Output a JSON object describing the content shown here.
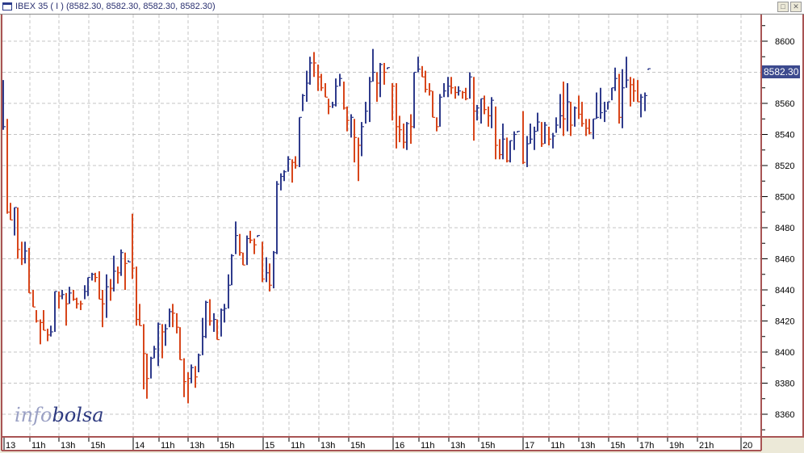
{
  "window": {
    "title": "IBEX 35 ( I ) (8582.30, 8582.30, 8582.30, 8582.30)",
    "restore_icon": "restore-icon",
    "close_icon": "close-icon"
  },
  "logo": {
    "part1": "info",
    "part2": "bolsa"
  },
  "price_badge": "8582.30",
  "colors": {
    "up": "#2f3b8c",
    "down": "#d8461b",
    "grid": "#c4c4c4",
    "frame": "#a85454",
    "badge": "#3c4a8e"
  },
  "chart_data": {
    "type": "ohlc-bar",
    "title": "IBEX 35 ( I )",
    "last_price": 8582.3,
    "ylim": [
      8350,
      8620
    ],
    "yticks": [
      8360,
      8380,
      8400,
      8420,
      8440,
      8460,
      8480,
      8500,
      8520,
      8540,
      8560,
      8580,
      8600
    ],
    "ytick_labels": [
      "8360",
      "8380",
      "8400",
      "8420",
      "8440",
      "8460",
      "8480",
      "8500",
      "8520",
      "8540",
      "8560",
      "",
      "8600"
    ],
    "xtick_labels": [
      "13",
      "11h",
      "13h",
      "15h",
      "14",
      "11h",
      "13h",
      "15h",
      "15",
      "11h",
      "13h",
      "15h",
      "16",
      "11h",
      "13h",
      "15h",
      "17",
      "11h",
      "13h",
      "15h",
      "17h",
      "19h",
      "21h",
      "20"
    ],
    "grid": true,
    "bar_interval": "15 min",
    "bar_format": "[high, low, close, direction(1 up / -1 down)]",
    "days": [
      {
        "day": "13",
        "bars": [
          [
            8575,
            8543,
            8545,
            1
          ],
          [
            8550,
            8489,
            8490,
            -1
          ],
          [
            8496,
            8485,
            8485,
            -1
          ],
          [
            8493,
            8475,
            8493,
            1
          ],
          [
            8493,
            8460,
            8466,
            -1
          ],
          [
            8471,
            8456,
            8460,
            -1
          ],
          [
            8471,
            8457,
            8465,
            1
          ],
          [
            8467,
            8438,
            8438,
            -1
          ],
          [
            8440,
            8429,
            8429,
            -1
          ],
          [
            8427,
            8419,
            8420,
            -1
          ],
          [
            8421,
            8405,
            8419,
            -1
          ],
          [
            8427,
            8414,
            8414,
            -1
          ],
          [
            8415,
            8407,
            8411,
            -1
          ],
          [
            8417,
            8410,
            8413,
            1
          ],
          [
            8439,
            8413,
            8439,
            1
          ],
          [
            8439,
            8428,
            8436,
            -1
          ],
          [
            8440,
            8434,
            8437,
            1
          ],
          [
            8438,
            8417,
            8431,
            -1
          ],
          [
            8442,
            8431,
            8438,
            1
          ],
          [
            8440,
            8433,
            8434,
            -1
          ],
          [
            8435,
            8428,
            8431,
            -1
          ],
          [
            8433,
            8427,
            8431,
            -1
          ],
          [
            8443,
            8434,
            8439,
            1
          ],
          [
            8448,
            8436,
            8448,
            1
          ],
          [
            8451,
            8446,
            8450,
            1
          ],
          [
            8451,
            8445,
            8448,
            -1
          ],
          [
            8452,
            8434,
            8434,
            -1
          ],
          [
            8440,
            8416,
            8431,
            -1
          ],
          [
            8450,
            8422,
            8442,
            1
          ],
          [
            8447,
            8433,
            8441,
            -1
          ],
          [
            8462,
            8439,
            8452,
            1
          ],
          [
            8455,
            8444,
            8451,
            -1
          ],
          [
            8466,
            8449,
            8464,
            1
          ],
          [
            8464,
            8440,
            8457,
            -1
          ],
          [
            8459,
            8458,
            8458,
            1
          ]
        ]
      },
      {
        "day": "14",
        "bars": [
          [
            8489,
            8447,
            8454,
            -1
          ],
          [
            8455,
            8417,
            8421,
            -1
          ],
          [
            8431,
            8417,
            8417,
            -1
          ],
          [
            8418,
            8376,
            8399,
            -1
          ],
          [
            8399,
            8370,
            8383,
            -1
          ],
          [
            8397,
            8383,
            8396,
            1
          ],
          [
            8404,
            8396,
            8402,
            1
          ],
          [
            8419,
            8391,
            8418,
            1
          ],
          [
            8418,
            8396,
            8413,
            -1
          ],
          [
            8418,
            8404,
            8415,
            1
          ],
          [
            8428,
            8416,
            8426,
            1
          ],
          [
            8431,
            8416,
            8425,
            -1
          ],
          [
            8425,
            8412,
            8416,
            -1
          ],
          [
            8416,
            8395,
            8395,
            -1
          ],
          [
            8396,
            8371,
            8381,
            -1
          ],
          [
            8387,
            8367,
            8383,
            -1
          ],
          [
            8392,
            8380,
            8390,
            1
          ],
          [
            8391,
            8377,
            8384,
            -1
          ],
          [
            8399,
            8387,
            8398,
            1
          ],
          [
            8422,
            8398,
            8410,
            1
          ],
          [
            8433,
            8409,
            8432,
            1
          ],
          [
            8434,
            8417,
            8420,
            -1
          ],
          [
            8425,
            8413,
            8421,
            1
          ],
          [
            8421,
            8408,
            8408,
            -1
          ],
          [
            8428,
            8410,
            8427,
            1
          ],
          [
            8431,
            8419,
            8428,
            1
          ],
          [
            8450,
            8428,
            8443,
            1
          ],
          [
            8463,
            8443,
            8462,
            1
          ],
          [
            8484,
            8463,
            8475,
            1
          ],
          [
            8476,
            8462,
            8464,
            -1
          ],
          [
            8464,
            8456,
            8456,
            -1
          ],
          [
            8475,
            8456,
            8473,
            1
          ],
          [
            8478,
            8470,
            8472,
            -1
          ],
          [
            8473,
            8463,
            8469,
            -1
          ],
          [
            8475,
            8474,
            8475,
            1
          ]
        ]
      },
      {
        "day": "15",
        "bars": [
          [
            8471,
            8445,
            8447,
            -1
          ],
          [
            8461,
            8445,
            8451,
            1
          ],
          [
            8457,
            8439,
            8443,
            -1
          ],
          [
            8465,
            8441,
            8464,
            1
          ],
          [
            8510,
            8463,
            8508,
            1
          ],
          [
            8515,
            8504,
            8513,
            1
          ],
          [
            8517,
            8510,
            8516,
            1
          ],
          [
            8526,
            8516,
            8524,
            1
          ],
          [
            8524,
            8509,
            8522,
            -1
          ],
          [
            8526,
            8518,
            8520,
            -1
          ],
          [
            8551,
            8519,
            8551,
            1
          ],
          [
            8566,
            8555,
            8565,
            1
          ],
          [
            8581,
            8561,
            8573,
            1
          ],
          [
            8590,
            8572,
            8586,
            1
          ],
          [
            8593,
            8577,
            8586,
            -1
          ],
          [
            8585,
            8568,
            8577,
            -1
          ],
          [
            8579,
            8568,
            8570,
            -1
          ],
          [
            8573,
            8564,
            8564,
            -1
          ],
          [
            8563,
            8553,
            8558,
            -1
          ],
          [
            8561,
            8557,
            8559,
            1
          ],
          [
            8576,
            8558,
            8571,
            1
          ],
          [
            8579,
            8571,
            8576,
            1
          ],
          [
            8574,
            8556,
            8557,
            -1
          ],
          [
            8558,
            8542,
            8549,
            -1
          ],
          [
            8553,
            8538,
            8551,
            1
          ],
          [
            8550,
            8522,
            8538,
            -1
          ],
          [
            8538,
            8510,
            8533,
            -1
          ],
          [
            8548,
            8526,
            8545,
            1
          ],
          [
            8561,
            8547,
            8555,
            1
          ],
          [
            8577,
            8548,
            8574,
            1
          ],
          [
            8595,
            8574,
            8580,
            1
          ],
          [
            8580,
            8561,
            8573,
            -1
          ],
          [
            8586,
            8564,
            8585,
            1
          ],
          [
            8586,
            8572,
            8580,
            -1
          ],
          [
            8583,
            8582,
            8583,
            1
          ]
        ]
      },
      {
        "day": "16",
        "bars": [
          [
            8573,
            8549,
            8571,
            -1
          ],
          [
            8573,
            8531,
            8545,
            -1
          ],
          [
            8552,
            8535,
            8543,
            -1
          ],
          [
            8547,
            8531,
            8535,
            -1
          ],
          [
            8548,
            8530,
            8547,
            1
          ],
          [
            8553,
            8534,
            8545,
            -1
          ],
          [
            8580,
            8544,
            8580,
            1
          ],
          [
            8590,
            8580,
            8582,
            1
          ],
          [
            8584,
            8577,
            8577,
            -1
          ],
          [
            8581,
            8567,
            8569,
            -1
          ],
          [
            8573,
            8565,
            8568,
            -1
          ],
          [
            8568,
            8551,
            8551,
            -1
          ],
          [
            8551,
            8542,
            8545,
            -1
          ],
          [
            8566,
            8545,
            8564,
            1
          ],
          [
            8573,
            8564,
            8568,
            1
          ],
          [
            8577,
            8564,
            8571,
            1
          ],
          [
            8577,
            8566,
            8570,
            -1
          ],
          [
            8571,
            8563,
            8567,
            -1
          ],
          [
            8571,
            8565,
            8568,
            1
          ],
          [
            8568,
            8563,
            8567,
            -1
          ],
          [
            8570,
            8562,
            8563,
            -1
          ],
          [
            8580,
            8563,
            8577,
            1
          ],
          [
            8577,
            8536,
            8555,
            -1
          ],
          [
            8559,
            8549,
            8557,
            1
          ],
          [
            8563,
            8547,
            8563,
            1
          ],
          [
            8565,
            8553,
            8556,
            -1
          ],
          [
            8558,
            8545,
            8552,
            -1
          ],
          [
            8564,
            8544,
            8562,
            1
          ],
          [
            8558,
            8524,
            8533,
            -1
          ],
          [
            8537,
            8524,
            8527,
            -1
          ],
          [
            8547,
            8524,
            8537,
            1
          ],
          [
            8538,
            8522,
            8523,
            -1
          ],
          [
            8536,
            8522,
            8536,
            1
          ],
          [
            8542,
            8530,
            8540,
            1
          ],
          [
            8542,
            8542,
            8542,
            1
          ]
        ]
      },
      {
        "day": "17",
        "bars": [
          [
            8555,
            8521,
            8522,
            -1
          ],
          [
            8539,
            8519,
            8534,
            1
          ],
          [
            8547,
            8534,
            8537,
            1
          ],
          [
            8545,
            8530,
            8542,
            1
          ],
          [
            8554,
            8542,
            8548,
            1
          ],
          [
            8548,
            8532,
            8534,
            -1
          ],
          [
            8548,
            8534,
            8546,
            1
          ],
          [
            8545,
            8533,
            8537,
            -1
          ],
          [
            8541,
            8531,
            8539,
            1
          ],
          [
            8551,
            8541,
            8546,
            1
          ],
          [
            8566,
            8544,
            8552,
            1
          ],
          [
            8574,
            8539,
            8550,
            -1
          ],
          [
            8573,
            8542,
            8561,
            1
          ],
          [
            8561,
            8539,
            8546,
            -1
          ],
          [
            8558,
            8545,
            8557,
            1
          ],
          [
            8565,
            8550,
            8553,
            -1
          ],
          [
            8561,
            8545,
            8547,
            -1
          ],
          [
            8550,
            8539,
            8544,
            -1
          ],
          [
            8550,
            8540,
            8541,
            -1
          ],
          [
            8550,
            8537,
            8550,
            1
          ],
          [
            8567,
            8550,
            8551,
            1
          ],
          [
            8570,
            8550,
            8554,
            1
          ],
          [
            8561,
            8548,
            8555,
            1
          ],
          [
            8561,
            8556,
            8561,
            1
          ],
          [
            8570,
            8562,
            8570,
            1
          ],
          [
            8583,
            8568,
            8576,
            1
          ],
          [
            8579,
            8547,
            8551,
            -1
          ],
          [
            8582,
            8544,
            8570,
            1
          ],
          [
            8590,
            8570,
            8575,
            1
          ],
          [
            8577,
            8558,
            8572,
            -1
          ],
          [
            8576,
            8561,
            8568,
            -1
          ],
          [
            8575,
            8561,
            8561,
            -1
          ],
          [
            8566,
            8551,
            8564,
            1
          ],
          [
            8567,
            8555,
            8565,
            1
          ],
          [
            8582.3,
            8582.3,
            8582.3,
            1
          ]
        ]
      }
    ]
  }
}
